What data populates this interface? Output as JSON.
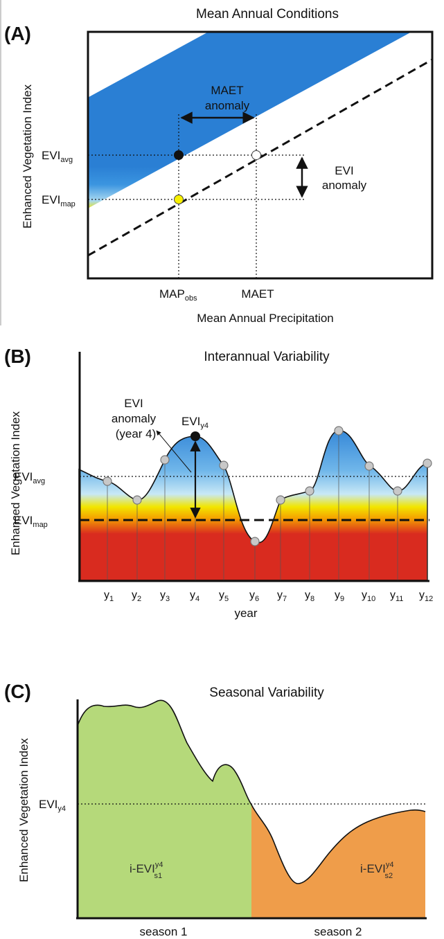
{
  "panel_a": {
    "letter": "(A)",
    "title": "Mean Annual Conditions",
    "ylabel": "Enhanced Vegetation Index",
    "xlabel": "Mean Annual Precipitation",
    "evi_avg": {
      "main": "EVI",
      "sub": "avg"
    },
    "evi_map": {
      "main": "EVI",
      "sub": "map"
    },
    "maet_anomaly_line1": "MAET",
    "maet_anomaly_line2": "anomaly",
    "evi_anomaly_line1": "EVI",
    "evi_anomaly_line2": "anomaly",
    "map_obs": {
      "main": "MAP",
      "sub": "obs"
    },
    "maet": "MAET"
  },
  "panel_b": {
    "letter": "(B)",
    "title": "Interannual Variability",
    "ylabel": "Enhanced Vegetation Index",
    "xlabel": "year",
    "evi_avg": {
      "main": "EVI",
      "sub": "avg"
    },
    "evi_map": {
      "main": "EVI",
      "sub": "map"
    },
    "evi_y4": {
      "main": "EVI",
      "sub": "y4"
    },
    "anomaly_line1": "EVI",
    "anomaly_line2": "anomaly",
    "anomaly_line3": "(year 4)",
    "years": [
      {
        "main": "y",
        "sub": "1"
      },
      {
        "main": "y",
        "sub": "2"
      },
      {
        "main": "y",
        "sub": "3"
      },
      {
        "main": "y",
        "sub": "4"
      },
      {
        "main": "y",
        "sub": "5"
      },
      {
        "main": "y",
        "sub": "6"
      },
      {
        "main": "y",
        "sub": "7"
      },
      {
        "main": "y",
        "sub": "8"
      },
      {
        "main": "y",
        "sub": "9"
      },
      {
        "main": "y",
        "sub": "10"
      },
      {
        "main": "y",
        "sub": "11"
      },
      {
        "main": "y",
        "sub": "12"
      }
    ]
  },
  "panel_c": {
    "letter": "(C)",
    "title": "Seasonal Variability",
    "ylabel": "Enhanced Vegetation Index",
    "evi_y4": {
      "main": "EVI",
      "sub": "y4"
    },
    "ievi_s1": {
      "main": "i-EVI",
      "sup": "y4",
      "sub": "s1"
    },
    "ievi_s2": {
      "main": "i-EVI",
      "sup": "y4",
      "sub": "s2"
    },
    "season1": "season 1",
    "season2": "season 2"
  },
  "colors": {
    "blue": "#2f86d8",
    "light_blue": "#a8d8f0",
    "yellow": "#f2e600",
    "orange": "#f5a300",
    "red": "#d92b1f",
    "green": "#b5d97a",
    "season2_orange": "#ef9d4a"
  }
}
